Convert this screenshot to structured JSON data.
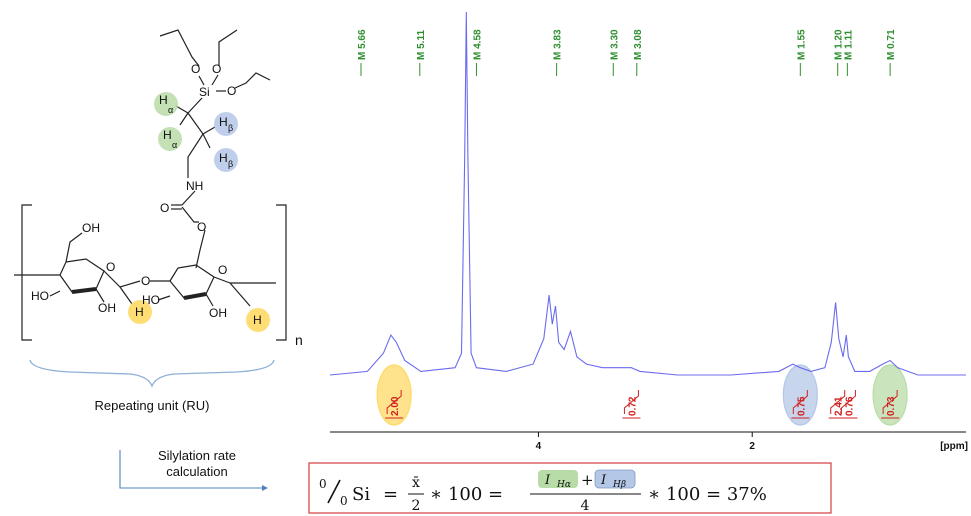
{
  "structure": {
    "atoms": {
      "si": "Si",
      "o": "O",
      "nh": "NH",
      "oh": "OH",
      "ho": "HO",
      "h": "H",
      "alpha": "α",
      "beta": "β"
    },
    "n_label": "n",
    "ru_caption": "Repeating unit (RU)",
    "colors": {
      "green": "#b8dca7",
      "blue": "#b4c7e7",
      "yellow": "#ffd966"
    }
  },
  "arrow_label": {
    "line1": "Silylation rate",
    "line2": "calculation"
  },
  "chart_data": {
    "type": "line",
    "title": "",
    "xlabel": "[ppm]",
    "x_reversed": true,
    "xlim": [
      5.95,
      0.0
    ],
    "x_ticks": [
      "4",
      "2"
    ],
    "x_tick_values": [
      4,
      2
    ],
    "peak_labels": [
      {
        "text": "M 5.66",
        "ppm": 5.66
      },
      {
        "text": "M 5.11",
        "ppm": 5.11
      },
      {
        "text": "M 4.58",
        "ppm": 4.58
      },
      {
        "text": "M 3.83",
        "ppm": 3.83
      },
      {
        "text": "M 3.30",
        "ppm": 3.3
      },
      {
        "text": "M 3.08",
        "ppm": 3.08
      },
      {
        "text": "M 1.55",
        "ppm": 1.55
      },
      {
        "text": "M 1.20",
        "ppm": 1.2
      },
      {
        "text": "M 1.11",
        "ppm": 1.11
      },
      {
        "text": "M 0.71",
        "ppm": 0.71
      }
    ],
    "integrals": [
      {
        "value": "2.00",
        "ppm": 5.35
      },
      {
        "value": "0.72",
        "ppm": 3.13
      },
      {
        "value": "0.75",
        "ppm": 1.55
      },
      {
        "value": "2.41",
        "ppm": 1.2
      },
      {
        "value": "0.76",
        "ppm": 1.1
      },
      {
        "value": "0.73",
        "ppm": 0.71
      }
    ],
    "highlights": [
      {
        "ppm": 5.35,
        "color": "#ffd966"
      },
      {
        "ppm": 1.55,
        "color": "#b4c7e7"
      },
      {
        "ppm": 0.71,
        "color": "#b8dca7"
      }
    ],
    "spectrum_color": "#6b6bef",
    "peak_label_color": "#2f8f2f",
    "integral_color": "#d21f1f",
    "spectrum": [
      [
        5.95,
        0.0
      ],
      [
        5.6,
        0.01
      ],
      [
        5.45,
        0.06
      ],
      [
        5.38,
        0.11
      ],
      [
        5.33,
        0.09
      ],
      [
        5.25,
        0.04
      ],
      [
        5.1,
        0.01
      ],
      [
        4.78,
        0.02
      ],
      [
        4.72,
        0.06
      ],
      [
        4.69,
        0.6
      ],
      [
        4.675,
        1.0
      ],
      [
        4.66,
        0.6
      ],
      [
        4.63,
        0.06
      ],
      [
        4.58,
        0.02
      ],
      [
        4.3,
        0.01
      ],
      [
        4.05,
        0.03
      ],
      [
        3.95,
        0.1
      ],
      [
        3.9,
        0.22
      ],
      [
        3.87,
        0.14
      ],
      [
        3.84,
        0.19
      ],
      [
        3.81,
        0.09
      ],
      [
        3.76,
        0.07
      ],
      [
        3.7,
        0.12
      ],
      [
        3.64,
        0.05
      ],
      [
        3.55,
        0.03
      ],
      [
        3.4,
        0.02
      ],
      [
        3.2,
        0.02
      ],
      [
        3.13,
        0.02
      ],
      [
        3.05,
        0.01
      ],
      [
        2.7,
        0.0
      ],
      [
        2.5,
        0.0
      ],
      [
        2.2,
        0.0
      ],
      [
        1.75,
        0.01
      ],
      [
        1.62,
        0.03
      ],
      [
        1.55,
        0.02
      ],
      [
        1.45,
        0.01
      ],
      [
        1.32,
        0.02
      ],
      [
        1.26,
        0.09
      ],
      [
        1.22,
        0.2
      ],
      [
        1.19,
        0.1
      ],
      [
        1.15,
        0.05
      ],
      [
        1.12,
        0.11
      ],
      [
        1.1,
        0.05
      ],
      [
        1.04,
        0.01
      ],
      [
        0.9,
        0.01
      ],
      [
        0.78,
        0.03
      ],
      [
        0.71,
        0.04
      ],
      [
        0.64,
        0.02
      ],
      [
        0.45,
        0.0
      ],
      [
        0.0,
        0.0
      ]
    ]
  },
  "formula": {
    "pct_num": "0",
    "pct_den": "0",
    "si": "Si",
    "eq1": "=",
    "xbar": "x̄",
    "two": "2",
    "times1": "∗ 100 =",
    "i_alpha_main": "I",
    "i_alpha_sub": "Hα",
    "plus": "+",
    "i_beta_main": "I",
    "i_beta_sub": "Hβ",
    "four": "4",
    "result": "∗  100 = 37%"
  }
}
